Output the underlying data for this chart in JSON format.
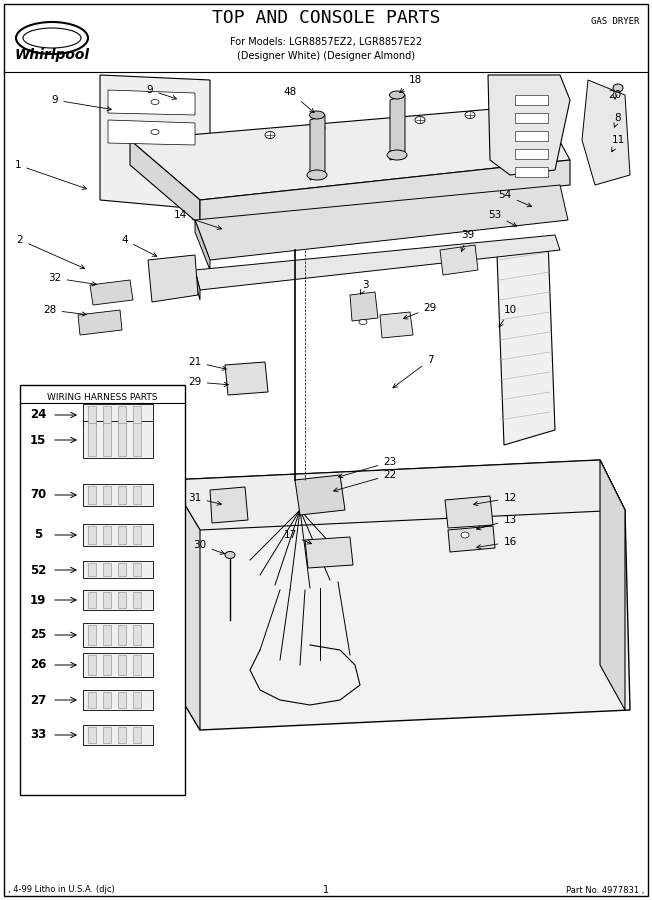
{
  "title": "TOP AND CONSOLE PARTS",
  "subtitle_line1": "For Models: LGR8857EZ2, LGR8857E22",
  "subtitle_line2": "(Designer White) (Designer Almond)",
  "gas_dryer_label": "GAS DRYER",
  "footer_left": ", 4-99 Litho in U.S.A. (djc)",
  "footer_center": "1",
  "footer_right": "Part No. 4977831 ,",
  "wiring_harness_label": "WIRING HARNESS PARTS",
  "bg_color": "#ffffff",
  "figsize": [
    6.52,
    9.0
  ],
  "dpi": 100,
  "whirlpool_text": "Whirlpool",
  "harness_parts": [
    "24",
    "15",
    "70",
    "5",
    "52",
    "19",
    "25",
    "26",
    "27",
    "33"
  ]
}
